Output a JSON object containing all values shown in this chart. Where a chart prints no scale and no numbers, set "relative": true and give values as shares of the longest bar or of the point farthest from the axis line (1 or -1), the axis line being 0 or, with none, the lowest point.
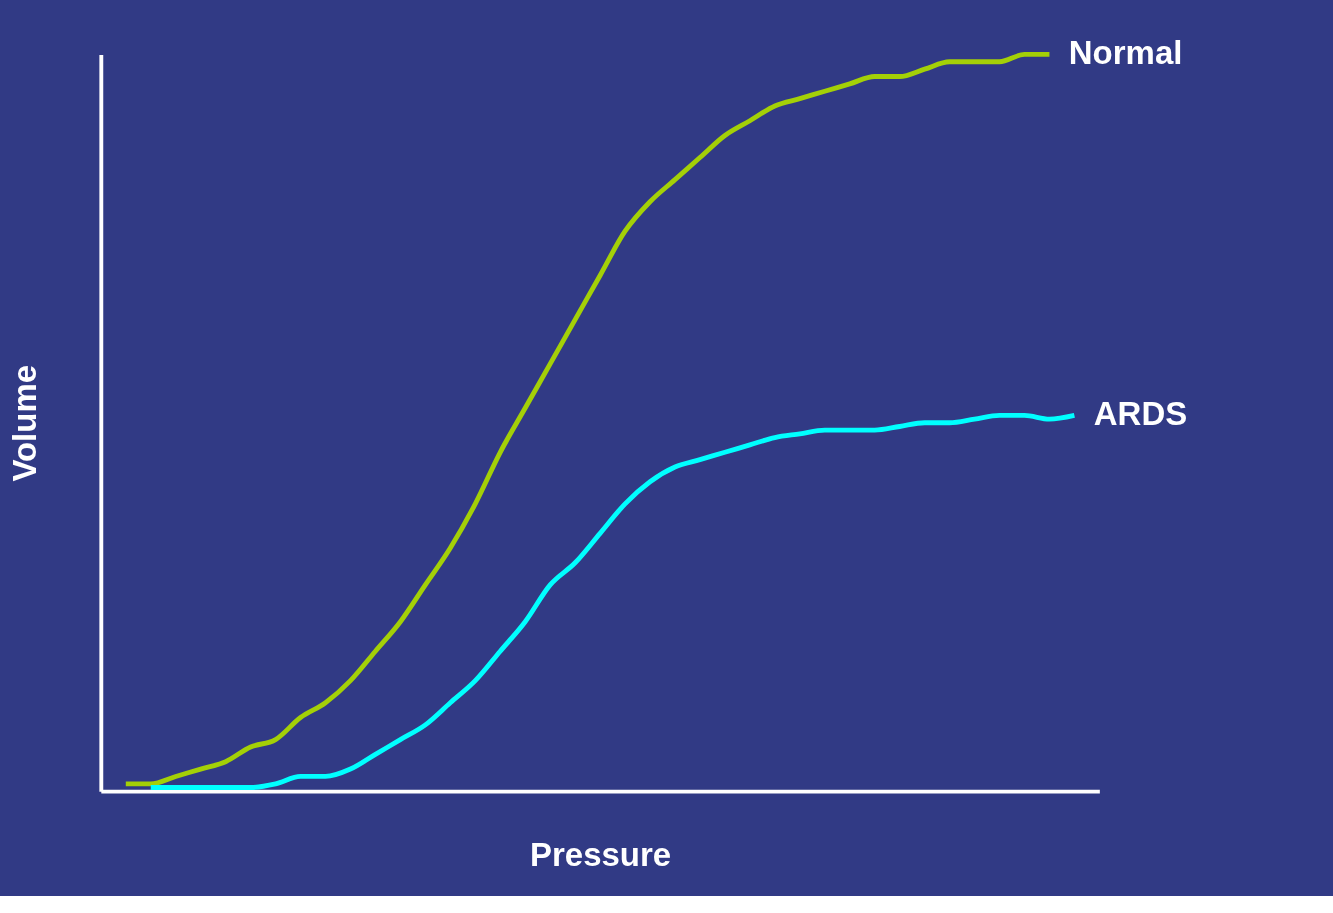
{
  "chart_data": {
    "type": "line",
    "relative": true,
    "xlabel": "Pressure",
    "ylabel": "Volume",
    "legend": false,
    "grid": false,
    "categories": [
      null,
      null,
      null,
      null,
      null,
      null,
      null,
      null,
      null,
      null,
      null,
      null,
      null,
      null,
      null,
      null,
      null,
      null,
      null,
      null,
      null,
      null,
      null,
      null,
      null,
      null,
      null,
      null,
      null,
      null,
      null,
      null,
      null,
      null,
      null,
      null,
      null,
      null,
      null,
      null,
      null
    ],
    "series": [
      {
        "name": "Normal",
        "color": "#a4d007",
        "values": [
          null,
          0.01,
          0.01,
          0.02,
          0.03,
          0.04,
          0.06,
          0.07,
          0.1,
          0.12,
          0.15,
          0.19,
          0.23,
          0.28,
          0.33,
          0.39,
          0.46,
          0.52,
          0.58,
          0.64,
          0.7,
          0.76,
          0.8,
          0.83,
          0.86,
          0.89,
          0.91,
          0.93,
          0.94,
          0.95,
          0.96,
          0.97,
          0.97,
          0.98,
          0.99,
          0.99,
          0.99,
          1.0,
          1.0,
          null,
          null
        ]
      },
      {
        "name": "ARDS",
        "color": "#00ffff",
        "values": [
          null,
          null,
          0.005,
          0.005,
          0.005,
          0.005,
          0.005,
          0.01,
          0.02,
          0.02,
          0.03,
          0.05,
          0.07,
          0.09,
          0.12,
          0.15,
          0.19,
          0.23,
          0.28,
          0.31,
          0.35,
          0.39,
          0.42,
          0.44,
          0.45,
          0.46,
          0.47,
          0.48,
          0.485,
          0.49,
          0.49,
          0.49,
          0.495,
          0.5,
          0.5,
          0.505,
          0.51,
          0.51,
          0.505,
          0.51,
          null
        ]
      }
    ]
  }
}
